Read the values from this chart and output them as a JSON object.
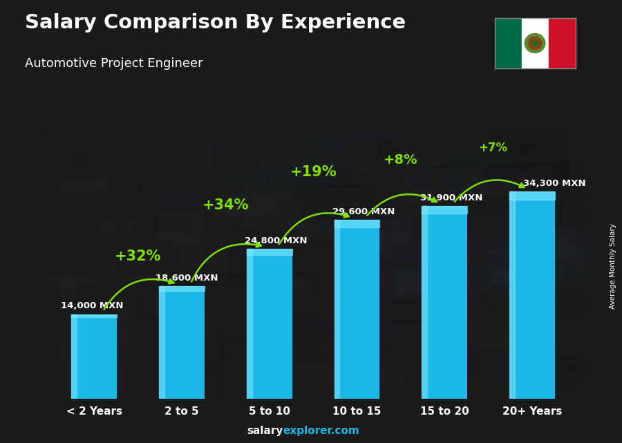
{
  "title": "Salary Comparison By Experience",
  "subtitle": "Automotive Project Engineer",
  "categories": [
    "< 2 Years",
    "2 to 5",
    "5 to 10",
    "10 to 15",
    "15 to 20",
    "20+ Years"
  ],
  "values": [
    14000,
    18600,
    24800,
    29600,
    31900,
    34300
  ],
  "labels": [
    "14,000 MXN",
    "18,600 MXN",
    "24,800 MXN",
    "29,600 MXN",
    "31,900 MXN",
    "34,300 MXN"
  ],
  "pct_labels": [
    "+32%",
    "+34%",
    "+19%",
    "+8%",
    "+7%"
  ],
  "bar_color": "#1BB8E8",
  "bar_left_color": "#5DD5F5",
  "pct_color": "#7FE000",
  "label_color": "#FFFFFF",
  "title_color": "#FFFFFF",
  "subtitle_color": "#FFFFFF",
  "footer_salary_color": "#FFFFFF",
  "footer_explorer_color": "#1BB8E8",
  "bg_color": "#1a1a1a",
  "footer_text_salary": "salary",
  "footer_text_rest": "explorer.com",
  "ylabel": "Average Monthly Salary",
  "figsize": [
    9.0,
    6.41
  ],
  "dpi": 100,
  "arrow_color": "#7FE000",
  "flag_green": "#006847",
  "flag_white": "#FFFFFF",
  "flag_red": "#CE1126"
}
